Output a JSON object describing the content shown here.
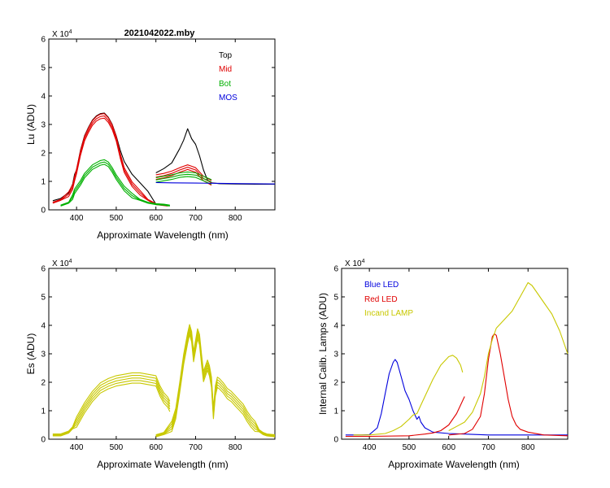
{
  "colors": {
    "black": "#000000",
    "red": "#e00000",
    "green": "#00b000",
    "blue": "#0000dd",
    "yellow": "#c8c800"
  },
  "chart_data": [
    {
      "id": "lu",
      "type": "line",
      "title": "2021042022.mby",
      "xlabel": "Approximate Wavelength (nm)",
      "ylabel": "Lu (ADU)",
      "multiplier": "X 10^4",
      "multiplier_base": "X 10",
      "multiplier_exp": "4",
      "xlim": [
        330,
        900
      ],
      "ylim": [
        0,
        60000
      ],
      "xticks": [
        400,
        500,
        600,
        700,
        800
      ],
      "yticks": [
        0,
        1,
        2,
        3,
        4,
        5,
        6
      ],
      "legend": "top-right",
      "legend_entries": [
        {
          "label": "Top",
          "color": "#000000"
        },
        {
          "label": "Mid",
          "color": "#e00000"
        },
        {
          "label": "Bot",
          "color": "#00b000"
        },
        {
          "label": "MOS",
          "color": "#0000dd"
        }
      ],
      "series": [
        {
          "name": "Top",
          "color": "#000000",
          "x": [
            340,
            360,
            380,
            390,
            395,
            400,
            410,
            420,
            430,
            440,
            450,
            460,
            470,
            480,
            490,
            500,
            510,
            520,
            540,
            560,
            580,
            600
          ],
          "y": [
            3200,
            4000,
            6000,
            9000,
            12500,
            14000,
            21000,
            26000,
            29000,
            31500,
            33000,
            33800,
            34000,
            32500,
            30000,
            26000,
            21000,
            17000,
            12500,
            9500,
            6500,
            2000
          ]
        },
        {
          "name": "Top",
          "color": "#000000",
          "x": [
            600,
            620,
            640,
            660,
            670,
            680,
            690,
            700,
            710,
            720,
            730,
            740,
            760,
            800,
            850,
            900
          ],
          "y": [
            13000,
            14500,
            16500,
            21500,
            24500,
            28500,
            25000,
            23000,
            19000,
            14000,
            10500,
            9500,
            9200,
            9100,
            9000,
            9000
          ]
        },
        {
          "name": "Mid",
          "color": "#e00000",
          "x": [
            340,
            360,
            380,
            390,
            395,
            400,
            410,
            420,
            430,
            440,
            450,
            460,
            470,
            480,
            490,
            500,
            510,
            520,
            540,
            560,
            580,
            600,
            630
          ],
          "y": [
            2500,
            3500,
            5500,
            8000,
            11000,
            13500,
            20000,
            25000,
            28000,
            30500,
            32000,
            32800,
            33000,
            31500,
            29000,
            25000,
            19000,
            14000,
            9000,
            6000,
            3500,
            2000,
            1500
          ]
        },
        {
          "name": "Mid",
          "color": "#e00000",
          "x": [
            600,
            620,
            640,
            660,
            670,
            680,
            690,
            700,
            720,
            740
          ],
          "y": [
            11500,
            12000,
            12800,
            14000,
            14500,
            15000,
            14500,
            14000,
            11000,
            9500
          ]
        },
        {
          "name": "Bot",
          "color": "#00b000",
          "x": [
            360,
            380,
            390,
            395,
            400,
            410,
            420,
            440,
            460,
            470,
            480,
            490,
            500,
            520,
            540,
            560,
            580,
            600,
            620,
            635
          ],
          "y": [
            1500,
            2500,
            4500,
            6500,
            7500,
            9500,
            12000,
            15000,
            16500,
            16800,
            16000,
            14000,
            11500,
            7500,
            5000,
            3500,
            2500,
            2000,
            1800,
            1500
          ]
        },
        {
          "name": "Bot",
          "color": "#00b000",
          "x": [
            600,
            620,
            640,
            660,
            680,
            700,
            720,
            740
          ],
          "y": [
            10500,
            11000,
            11500,
            12200,
            12500,
            12200,
            11000,
            9800
          ]
        },
        {
          "name": "MOS",
          "color": "#0000dd",
          "x": [
            600,
            640,
            700,
            760,
            820,
            900
          ],
          "y": [
            9600,
            9500,
            9400,
            9300,
            9200,
            9100
          ]
        }
      ]
    },
    {
      "id": "es",
      "type": "line",
      "title": "",
      "xlabel": "Approximate Wavelength (nm)",
      "ylabel": "Es  (ADU)",
      "multiplier": "X 10^4",
      "multiplier_base": "X 10",
      "multiplier_exp": "4",
      "xlim": [
        330,
        900
      ],
      "ylim": [
        0,
        60000
      ],
      "xticks": [
        400,
        500,
        600,
        700,
        800
      ],
      "yticks": [
        0,
        1,
        2,
        3,
        4,
        5,
        6
      ],
      "series": [
        {
          "name": "Es",
          "color": "#c8c800",
          "x": [
            340,
            360,
            380,
            390,
            400,
            420,
            440,
            460,
            480,
            500,
            520,
            540,
            560,
            580,
            600,
            610,
            620,
            630,
            635
          ],
          "y": [
            1500,
            1500,
            2500,
            4000,
            6000,
            11000,
            15000,
            18000,
            19500,
            20500,
            21000,
            21500,
            21500,
            21000,
            20500,
            17000,
            14500,
            13000,
            11500
          ]
        },
        {
          "name": "Es",
          "color": "#c8c800",
          "x": [
            600,
            620,
            640,
            650,
            660,
            670,
            680,
            685,
            690,
            695,
            700,
            705,
            710,
            715,
            720,
            725,
            730,
            735,
            740,
            745,
            750,
            755,
            760,
            770,
            780,
            790,
            800,
            810,
            820,
            830,
            840,
            850,
            860,
            870,
            880,
            900
          ],
          "y": [
            1200,
            2000,
            4500,
            9000,
            18000,
            28000,
            35500,
            38500,
            36000,
            29000,
            33000,
            37000,
            35000,
            28000,
            22000,
            24000,
            26000,
            24000,
            20000,
            9000,
            17000,
            20000,
            19500,
            18000,
            16000,
            15000,
            13500,
            12000,
            10500,
            8000,
            6000,
            4500,
            3000,
            2000,
            1500,
            1200
          ]
        }
      ]
    },
    {
      "id": "calib",
      "type": "line",
      "title": "",
      "xlabel": "Approximate Wavelength (nm)",
      "ylabel": "Internal Calib. Lamps  (ADU)",
      "multiplier": "X 10^4",
      "multiplier_base": "X 10",
      "multiplier_exp": "4",
      "xlim": [
        330,
        900
      ],
      "ylim": [
        0,
        60000
      ],
      "xticks": [
        400,
        500,
        600,
        700,
        800
      ],
      "yticks": [
        0,
        1,
        2,
        3,
        4,
        5,
        6
      ],
      "legend": "top-left",
      "legend_entries": [
        {
          "label": "Blue LED",
          "color": "#0000dd"
        },
        {
          "label": "Red LED",
          "color": "#e00000"
        },
        {
          "label": "Incand LAMP",
          "color": "#c8c800"
        }
      ],
      "series": [
        {
          "name": "Blue LED",
          "color": "#0000dd",
          "x": [
            340,
            380,
            400,
            420,
            430,
            440,
            450,
            460,
            465,
            470,
            480,
            490,
            500,
            510,
            520,
            525,
            530,
            540,
            560,
            600,
            640,
            700,
            800,
            900
          ],
          "y": [
            1500,
            1500,
            1600,
            4000,
            9000,
            16000,
            23000,
            27000,
            28000,
            27000,
            22000,
            17000,
            14000,
            10000,
            7000,
            8000,
            6000,
            4000,
            2500,
            2000,
            1800,
            1500,
            1500,
            1500
          ]
        },
        {
          "name": "Red LED",
          "color": "#e00000",
          "x": [
            340,
            400,
            500,
            540,
            560,
            580,
            600,
            620,
            640
          ],
          "y": [
            1000,
            1000,
            1200,
            1800,
            2200,
            3000,
            5000,
            9000,
            15000
          ]
        },
        {
          "name": "Red LED",
          "color": "#e00000",
          "x": [
            600,
            640,
            660,
            680,
            690,
            700,
            710,
            715,
            720,
            730,
            740,
            750,
            760,
            770,
            780,
            800,
            840,
            900
          ],
          "y": [
            1500,
            2000,
            3500,
            8000,
            16000,
            28000,
            36000,
            37000,
            36500,
            30000,
            22000,
            14000,
            8000,
            5000,
            3500,
            2500,
            1500,
            1200
          ]
        },
        {
          "name": "Incand LAMP",
          "color": "#c8c800",
          "x": [
            360,
            400,
            440,
            460,
            480,
            500,
            510,
            520,
            530,
            540,
            560,
            580,
            600,
            610,
            620,
            630,
            635
          ],
          "y": [
            1500,
            1500,
            2000,
            3000,
            4500,
            7000,
            8500,
            9000,
            12000,
            15000,
            21000,
            26000,
            29000,
            29500,
            28500,
            26000,
            23500
          ]
        },
        {
          "name": "Incand LAMP",
          "color": "#c8c800",
          "x": [
            600,
            620,
            640,
            660,
            680,
            690,
            700,
            710,
            720,
            740,
            760,
            780,
            800,
            810,
            820,
            840,
            860,
            880,
            900
          ],
          "y": [
            3000,
            4500,
            6000,
            9500,
            16000,
            22000,
            30000,
            35000,
            39000,
            42000,
            45000,
            50000,
            55000,
            54000,
            52000,
            48000,
            44000,
            38000,
            30000
          ]
        }
      ]
    }
  ]
}
